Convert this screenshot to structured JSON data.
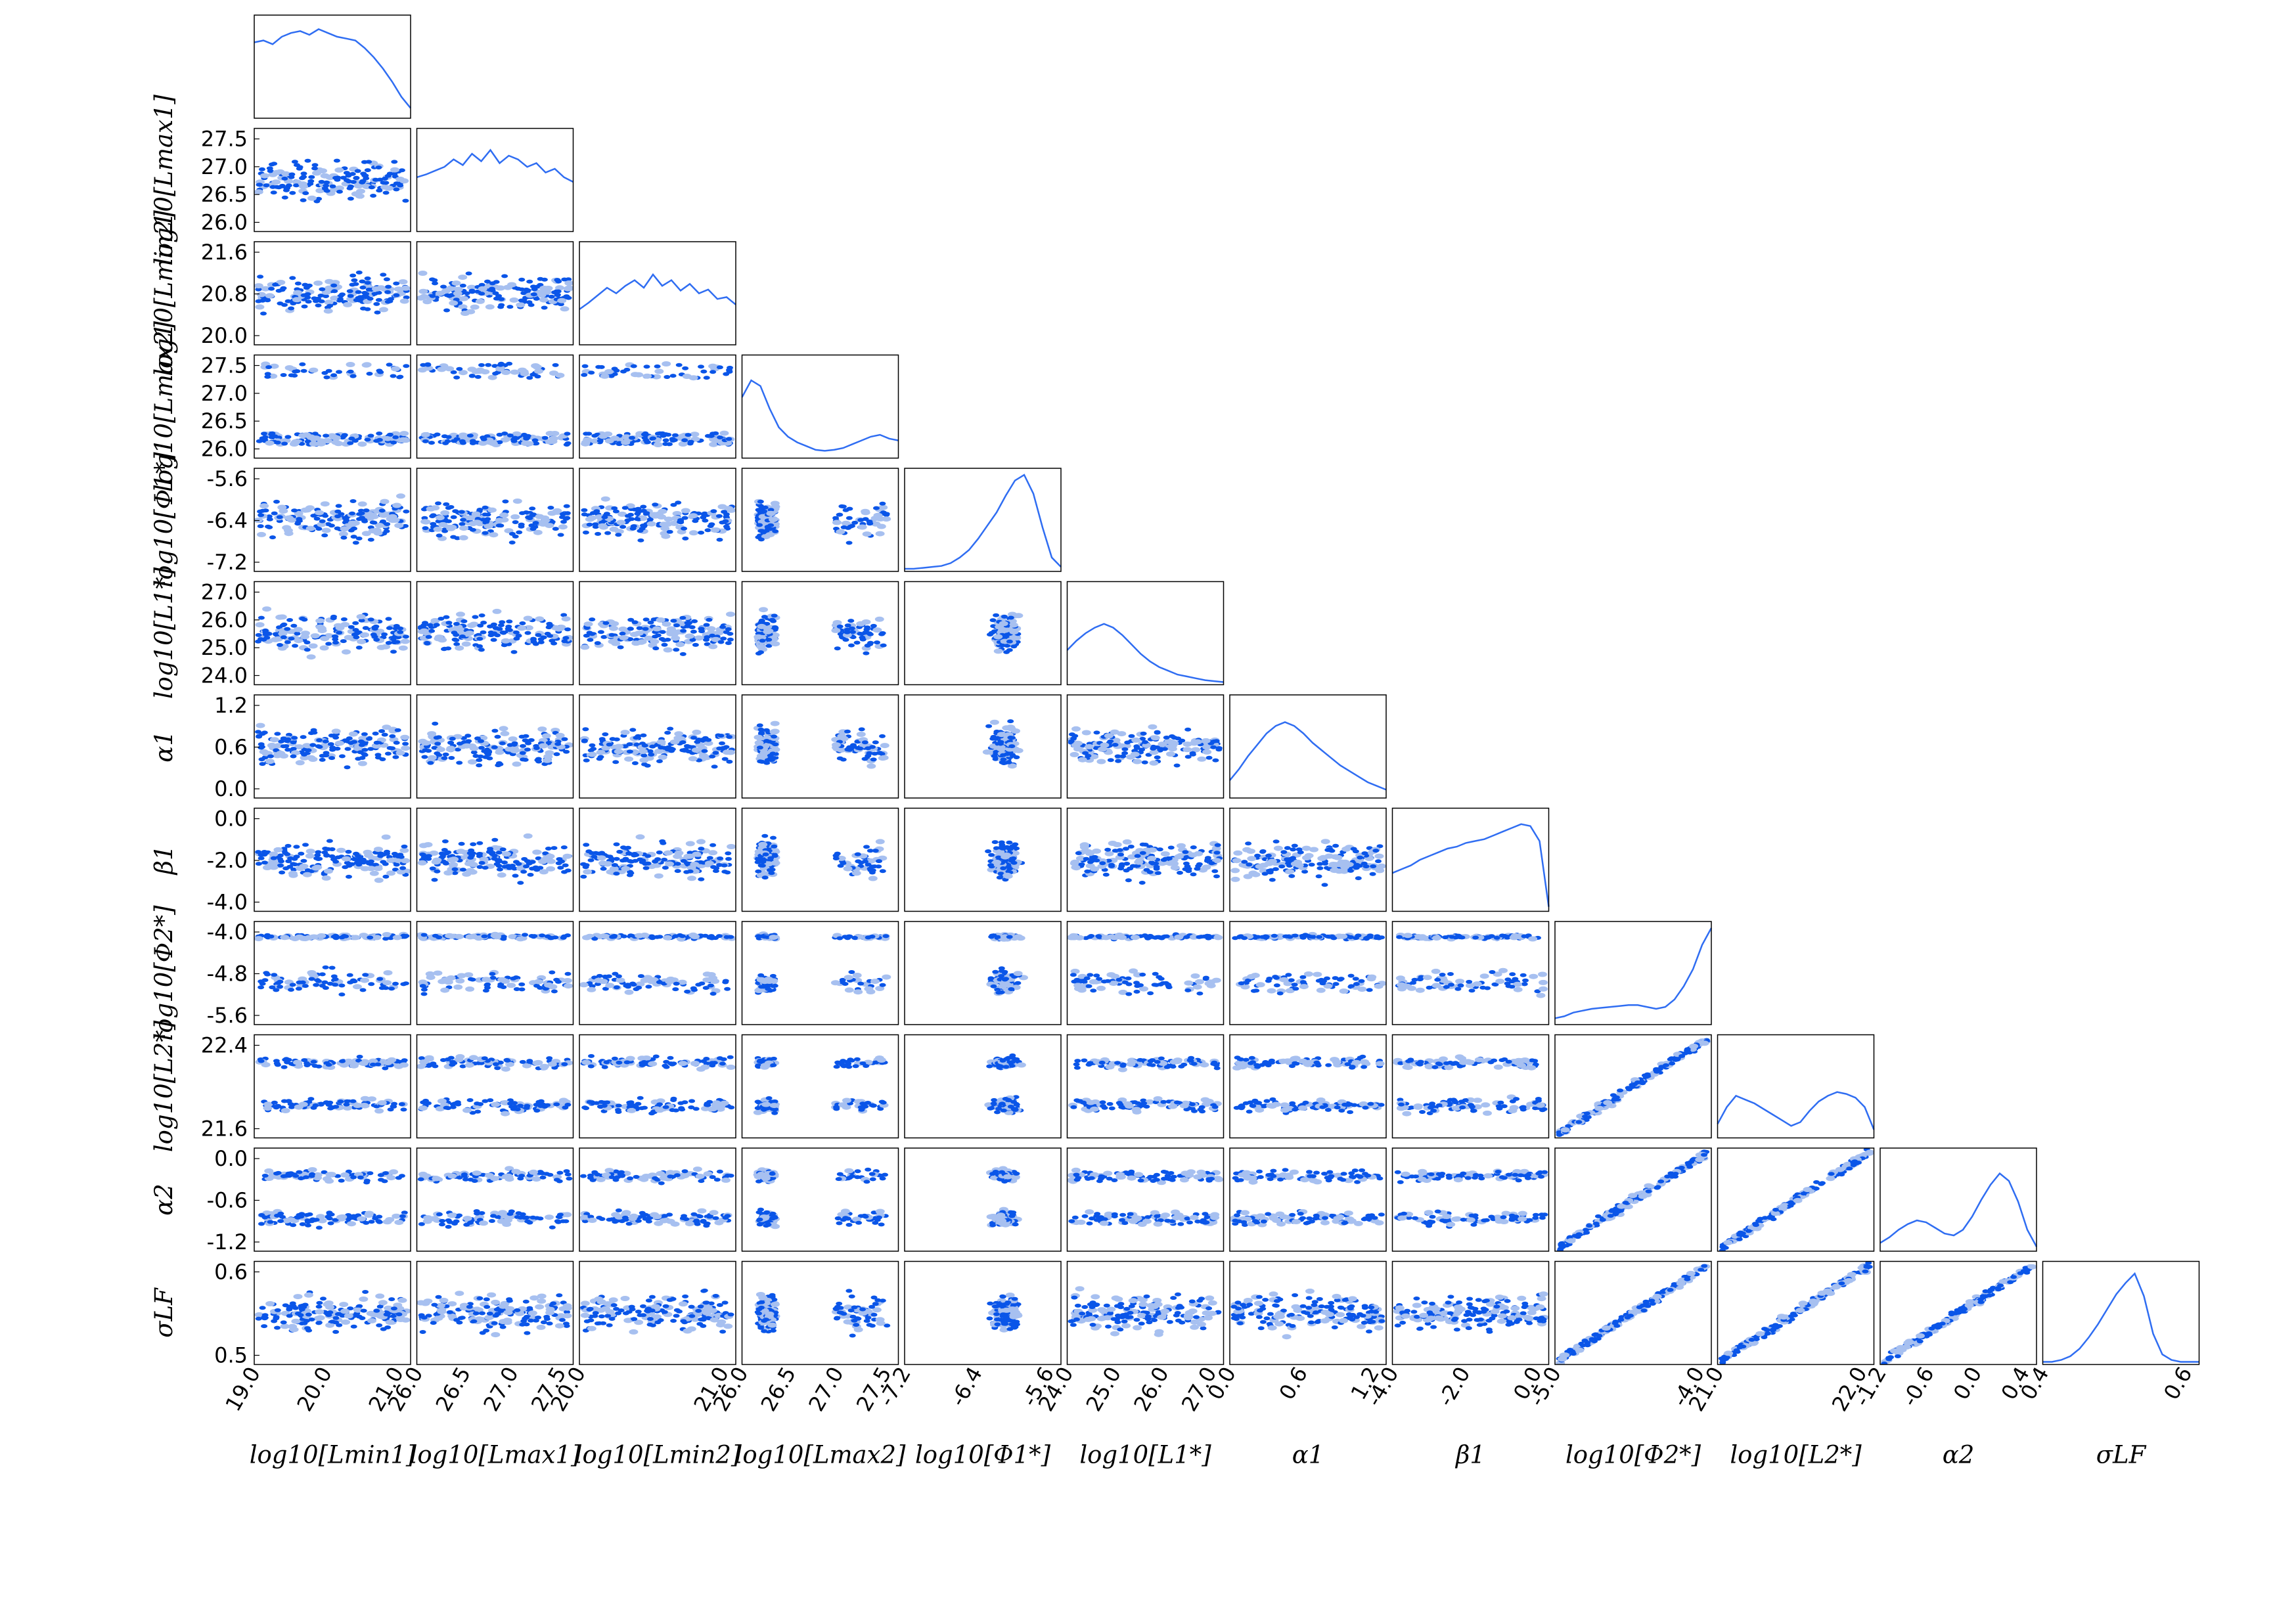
{
  "chart_data": {
    "type": "corner",
    "colors": {
      "line": "#2f6df2",
      "dense": "#0a55e8",
      "light": "#a7c0f0",
      "frame": "#000000"
    },
    "parameters": [
      {
        "key": "log_Lmin1",
        "label": "log10[Lmin1]",
        "range": [
          19.0,
          22.0
        ],
        "ticks": [
          "19.0",
          "20.0",
          "21.0"
        ]
      },
      {
        "key": "log_Lmax1",
        "label": "log10[Lmax1]",
        "range": [
          26.0,
          28.0
        ],
        "ticks": [
          "26.0",
          "26.5",
          "27.0",
          "27.5"
        ]
      },
      {
        "key": "log_Lmin2",
        "label": "log10[Lmin2]",
        "range": [
          19.4,
          22.0
        ],
        "ticks": [
          "20.0",
          "20.8",
          "21.6"
        ]
      },
      {
        "key": "log_Lmax2",
        "label": "log10[Lmax2]",
        "range": [
          26.0,
          28.0
        ],
        "ticks": [
          "26.0",
          "26.5",
          "27.0",
          "27.5"
        ]
      },
      {
        "key": "log_Phi1",
        "label": "log10[Φ1*]",
        "range": [
          -7.6,
          -5.4
        ],
        "ticks": [
          "-7.2",
          "-6.4",
          "-5.6"
        ]
      },
      {
        "key": "log_L1",
        "label": "log10[L1*]",
        "range": [
          24.0,
          27.0
        ],
        "ticks": [
          "24.0",
          "25.0",
          "26.0",
          "27.0"
        ]
      },
      {
        "key": "alpha1",
        "label": "α1",
        "range": [
          -0.3,
          1.5
        ],
        "ticks": [
          "0.0",
          "0.6",
          "1.2"
        ]
      },
      {
        "key": "beta1",
        "label": "β1",
        "range": [
          -5.0,
          0.2
        ],
        "ticks": [
          "-4.0",
          "-2.0",
          "0.0"
        ]
      },
      {
        "key": "log_Phi2",
        "label": "log10[Φ2*]",
        "range": [
          -5.7,
          -3.5
        ],
        "ticks": [
          "-5.6",
          "-4.8",
          "-4.0"
        ]
      },
      {
        "key": "log_L2",
        "label": "log10[L2*]",
        "range": [
          21.2,
          22.6
        ],
        "ticks": [
          "21.6",
          "22.4"
        ]
      },
      {
        "key": "alpha2",
        "label": "α2",
        "range": [
          -1.6,
          0.4
        ],
        "ticks": [
          "-1.2",
          "-0.6",
          "0.0"
        ]
      },
      {
        "key": "sigma_LF",
        "label": "σLF",
        "range": [
          0.42,
          0.68
        ],
        "ticks": [
          "0.5",
          "0.6"
        ]
      }
    ],
    "bottom_tick_labels": [
      [
        "19.0",
        "20.0",
        "21.0"
      ],
      [
        "26.0",
        "26.5",
        "27.0",
        "27.5"
      ],
      [
        "20.0",
        "21.0"
      ],
      [
        "26.0",
        "26.5",
        "27.0",
        "27.5"
      ],
      [
        "-7.2",
        "-6.4",
        "-5.6"
      ],
      [
        "24.0",
        "25.0",
        "26.0",
        "27.0"
      ],
      [
        "0.0",
        "0.6",
        "1.2"
      ],
      [
        "-4.0",
        "-2.0",
        "0.0"
      ],
      [
        "-5.0",
        "-4.0"
      ],
      [
        "21.0",
        "22.0"
      ],
      [
        "-1.2",
        "-0.6",
        "0.0",
        "0.4"
      ],
      [
        "0.4",
        "0.6"
      ]
    ],
    "xlabel_text": [
      "log10[Lmin1]",
      "log10[Lmax1]",
      "log10[Lmin2]",
      "log10[Lmax2]",
      "log10[Φ1*]",
      "log10[L1*]",
      "α1",
      "β1",
      "log10[Φ2*]",
      "log10[L2*]",
      "α2",
      "σLF"
    ],
    "ylabel_text": [
      "",
      "log10[Lmax1]",
      "log10[Lmin2]",
      "log10[Lmax2]",
      "log10[Φ1*]",
      "log10[L1*]",
      "α1",
      "β1",
      "log10[Φ2*]",
      "log10[L2*]",
      "α2",
      "σLF"
    ],
    "marginals": [
      [
        0.78,
        0.8,
        0.76,
        0.84,
        0.88,
        0.9,
        0.86,
        0.92,
        0.88,
        0.84,
        0.82,
        0.8,
        0.72,
        0.62,
        0.5,
        0.36,
        0.2,
        0.08
      ],
      [
        0.55,
        0.58,
        0.62,
        0.66,
        0.74,
        0.68,
        0.8,
        0.72,
        0.84,
        0.7,
        0.78,
        0.74,
        0.66,
        0.7,
        0.6,
        0.64,
        0.55,
        0.5
      ],
      [
        0.35,
        0.42,
        0.5,
        0.58,
        0.52,
        0.6,
        0.66,
        0.58,
        0.72,
        0.6,
        0.66,
        0.55,
        0.62,
        0.52,
        0.56,
        0.46,
        0.48,
        0.4
      ],
      [
        0.62,
        0.8,
        0.74,
        0.5,
        0.3,
        0.2,
        0.14,
        0.1,
        0.06,
        0.05,
        0.06,
        0.08,
        0.12,
        0.16,
        0.2,
        0.22,
        0.18,
        0.16
      ],
      [
        0.0,
        0.0,
        0.01,
        0.02,
        0.03,
        0.06,
        0.12,
        0.2,
        0.32,
        0.46,
        0.6,
        0.78,
        0.94,
        1.0,
        0.8,
        0.44,
        0.12,
        0.02
      ],
      [
        0.34,
        0.44,
        0.52,
        0.58,
        0.62,
        0.58,
        0.5,
        0.4,
        0.3,
        0.22,
        0.16,
        0.12,
        0.08,
        0.06,
        0.04,
        0.02,
        0.01,
        0.0
      ],
      [
        0.16,
        0.28,
        0.42,
        0.54,
        0.66,
        0.74,
        0.78,
        0.74,
        0.66,
        0.56,
        0.48,
        0.4,
        0.32,
        0.26,
        0.2,
        0.14,
        0.1,
        0.06
      ],
      [
        0.38,
        0.42,
        0.46,
        0.52,
        0.56,
        0.6,
        0.64,
        0.66,
        0.7,
        0.72,
        0.74,
        0.78,
        0.82,
        0.86,
        0.9,
        0.88,
        0.72,
        0.02
      ],
      [
        0.04,
        0.06,
        0.1,
        0.12,
        0.14,
        0.15,
        0.16,
        0.17,
        0.18,
        0.18,
        0.16,
        0.14,
        0.16,
        0.24,
        0.38,
        0.56,
        0.82,
        1.0
      ],
      [
        0.12,
        0.3,
        0.42,
        0.38,
        0.34,
        0.28,
        0.22,
        0.16,
        0.1,
        0.14,
        0.26,
        0.36,
        0.42,
        0.46,
        0.44,
        0.4,
        0.3,
        0.06
      ],
      [
        0.06,
        0.12,
        0.2,
        0.26,
        0.3,
        0.28,
        0.22,
        0.16,
        0.14,
        0.2,
        0.34,
        0.52,
        0.68,
        0.8,
        0.72,
        0.5,
        0.2,
        0.02
      ],
      [
        0.0,
        0.0,
        0.02,
        0.06,
        0.14,
        0.26,
        0.4,
        0.56,
        0.72,
        0.84,
        0.94,
        0.7,
        0.3,
        0.08,
        0.02,
        0.0,
        0.0,
        0.0
      ]
    ]
  }
}
